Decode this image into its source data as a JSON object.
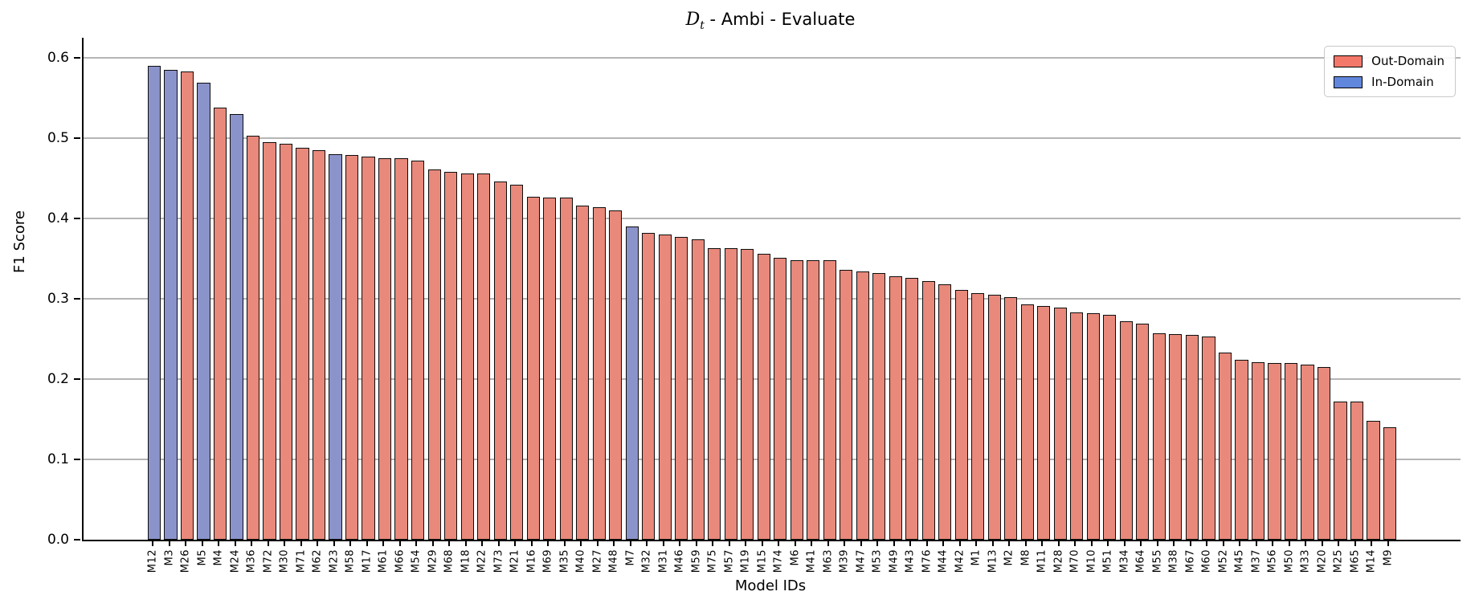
{
  "chart_data": {
    "type": "bar",
    "title": "D_t - Ambi - Evaluate",
    "title_parts": {
      "math_d": "D",
      "sub": "t",
      "rest": " - Ambi - Evaluate"
    },
    "xlabel": "Model IDs",
    "ylabel": "F1 Score",
    "ylim": [
      0,
      0.625
    ],
    "yticks": [
      0.0,
      0.1,
      0.2,
      0.3,
      0.4,
      0.5,
      0.6
    ],
    "grid": "horizontal",
    "legend_position": "upper right",
    "legend": [
      {
        "label": "Out-Domain",
        "color": "#f4786a"
      },
      {
        "label": "In-Domain",
        "color": "#6187dc"
      }
    ],
    "bar_colors": {
      "out_domain": "#e8897b",
      "in_domain": "#8b93cb"
    },
    "in_domain_ids": [
      "M12",
      "M3",
      "M5",
      "M24",
      "M23",
      "M7"
    ],
    "categories": [
      "M12",
      "M3",
      "M26",
      "M5",
      "M4",
      "M24",
      "M36",
      "M72",
      "M30",
      "M71",
      "M62",
      "M23",
      "M58",
      "M17",
      "M61",
      "M66",
      "M54",
      "M29",
      "M68",
      "M18",
      "M22",
      "M73",
      "M21",
      "M16",
      "M69",
      "M35",
      "M40",
      "M27",
      "M48",
      "M7",
      "M32",
      "M31",
      "M46",
      "M59",
      "M75",
      "M57",
      "M19",
      "M15",
      "M74",
      "M6",
      "M41",
      "M63",
      "M39",
      "M47",
      "M53",
      "M49",
      "M43",
      "M76",
      "M44",
      "M42",
      "M1",
      "M13",
      "M2",
      "M8",
      "M11",
      "M28",
      "M70",
      "M10",
      "M51",
      "M34",
      "M64",
      "M55",
      "M38",
      "M67",
      "M60",
      "M52",
      "M45",
      "M37",
      "M56",
      "M50",
      "M33",
      "M20",
      "M25",
      "M65",
      "M14",
      "M9"
    ],
    "values": [
      0.59,
      0.585,
      0.583,
      0.569,
      0.538,
      0.53,
      0.503,
      0.495,
      0.493,
      0.488,
      0.485,
      0.48,
      0.479,
      0.477,
      0.475,
      0.475,
      0.472,
      0.461,
      0.458,
      0.456,
      0.456,
      0.446,
      0.442,
      0.427,
      0.426,
      0.426,
      0.416,
      0.414,
      0.41,
      0.39,
      0.382,
      0.38,
      0.377,
      0.374,
      0.363,
      0.363,
      0.362,
      0.356,
      0.351,
      0.348,
      0.348,
      0.348,
      0.336,
      0.334,
      0.332,
      0.328,
      0.326,
      0.322,
      0.318,
      0.311,
      0.307,
      0.305,
      0.302,
      0.293,
      0.291,
      0.289,
      0.283,
      0.282,
      0.28,
      0.272,
      0.269,
      0.257,
      0.256,
      0.255,
      0.253,
      0.233,
      0.224,
      0.221,
      0.22,
      0.22,
      0.218,
      0.215,
      0.172,
      0.172,
      0.148,
      0.14
    ]
  }
}
